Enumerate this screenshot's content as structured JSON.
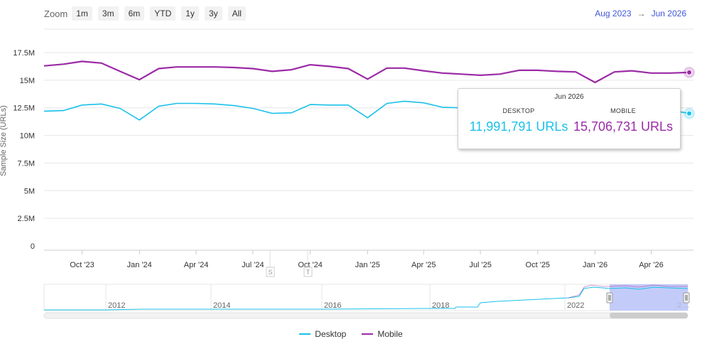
{
  "zoom": {
    "label": "Zoom",
    "buttons": [
      "1m",
      "3m",
      "6m",
      "YTD",
      "1y",
      "3y",
      "All"
    ]
  },
  "range": {
    "from": "Aug 2023",
    "arrow": "→",
    "to": "Jun 2026"
  },
  "colors": {
    "desktop": "#19c1ea",
    "mobile": "#9b2aa6",
    "selection": "#b8c2f8",
    "grid": "#e6e6e6"
  },
  "chart_data": {
    "type": "line",
    "ylabel": "Sample Size (URLs)",
    "ylim": [
      0,
      17500000
    ],
    "yticks": [
      {
        "value": 0,
        "label": "0"
      },
      {
        "value": 2500000,
        "label": "2.5M"
      },
      {
        "value": 5000000,
        "label": "5M"
      },
      {
        "value": 7500000,
        "label": "7.5M"
      },
      {
        "value": 10000000,
        "label": "10M"
      },
      {
        "value": 12500000,
        "label": "12.5M"
      },
      {
        "value": 15000000,
        "label": "15M"
      },
      {
        "value": 17500000,
        "label": "17.5M"
      }
    ],
    "xlim": [
      "2023-08-01",
      "2026-06-01"
    ],
    "xticks": [
      {
        "date": "2023-10-01",
        "label": "Oct '23"
      },
      {
        "date": "2024-01-01",
        "label": "Jan '24"
      },
      {
        "date": "2024-04-01",
        "label": "Apr '24"
      },
      {
        "date": "2024-07-01",
        "label": "Jul '24"
      },
      {
        "date": "2024-10-01",
        "label": "Oct '24"
      },
      {
        "date": "2025-01-01",
        "label": "Jan '25"
      },
      {
        "date": "2025-04-01",
        "label": "Apr '25"
      },
      {
        "date": "2025-07-01",
        "label": "Jul '25"
      },
      {
        "date": "2025-10-01",
        "label": "Oct '25"
      },
      {
        "date": "2026-01-01",
        "label": "Jan '26"
      },
      {
        "date": "2026-04-01",
        "label": "Apr '26"
      }
    ],
    "x": [
      "2023-08-01",
      "2023-09-01",
      "2023-10-01",
      "2023-11-01",
      "2023-12-01",
      "2024-01-01",
      "2024-02-01",
      "2024-03-01",
      "2024-04-01",
      "2024-05-01",
      "2024-06-01",
      "2024-07-01",
      "2024-08-01",
      "2024-09-01",
      "2024-10-01",
      "2024-11-01",
      "2024-12-01",
      "2025-01-01",
      "2025-02-01",
      "2025-03-01",
      "2025-04-01",
      "2025-05-01",
      "2025-06-01",
      "2025-07-01",
      "2025-08-01",
      "2025-09-01",
      "2025-10-01",
      "2025-11-01",
      "2025-12-01",
      "2026-01-01",
      "2026-02-01",
      "2026-03-01",
      "2026-04-01",
      "2026-05-01",
      "2026-06-01"
    ],
    "series": [
      {
        "name": "Desktop",
        "color": "#19c1ea",
        "values": [
          12200000,
          12250000,
          12750000,
          12850000,
          12450000,
          11400000,
          12650000,
          12900000,
          12900000,
          12850000,
          12700000,
          12450000,
          12000000,
          12050000,
          12800000,
          12750000,
          12750000,
          11600000,
          12900000,
          13100000,
          12950000,
          12550000,
          12500000,
          12100000,
          12200000,
          12400000,
          12600000,
          12600000,
          12500000,
          11500000,
          12400000,
          12650000,
          12400000,
          12300000,
          11991791
        ]
      },
      {
        "name": "Mobile",
        "color": "#9b2aa6",
        "values": [
          16300000,
          16450000,
          16700000,
          16550000,
          15800000,
          15050000,
          16050000,
          16200000,
          16200000,
          16200000,
          16150000,
          16050000,
          15800000,
          15950000,
          16400000,
          16250000,
          16050000,
          15100000,
          16100000,
          16100000,
          15850000,
          15650000,
          15550000,
          15450000,
          15550000,
          15900000,
          15900000,
          15800000,
          15750000,
          14800000,
          15750000,
          15850000,
          15650000,
          15650000,
          15706731
        ]
      }
    ],
    "tooltip": {
      "date": "Jun 2026",
      "desktop_label": "DESKTOP",
      "desktop_value": "11,991,791 URLs",
      "mobile_label": "MOBILE",
      "mobile_value": "15,706,731 URLs"
    },
    "navigator": {
      "year_labels": [
        "2012",
        "2014",
        "2016",
        "2018",
        "2022",
        "2…"
      ],
      "flags": [
        "S",
        "T"
      ]
    },
    "legend_placement": "bottom"
  },
  "legend": [
    {
      "label": "Desktop",
      "color": "#19c1ea"
    },
    {
      "label": "Mobile",
      "color": "#9b2aa6"
    }
  ]
}
